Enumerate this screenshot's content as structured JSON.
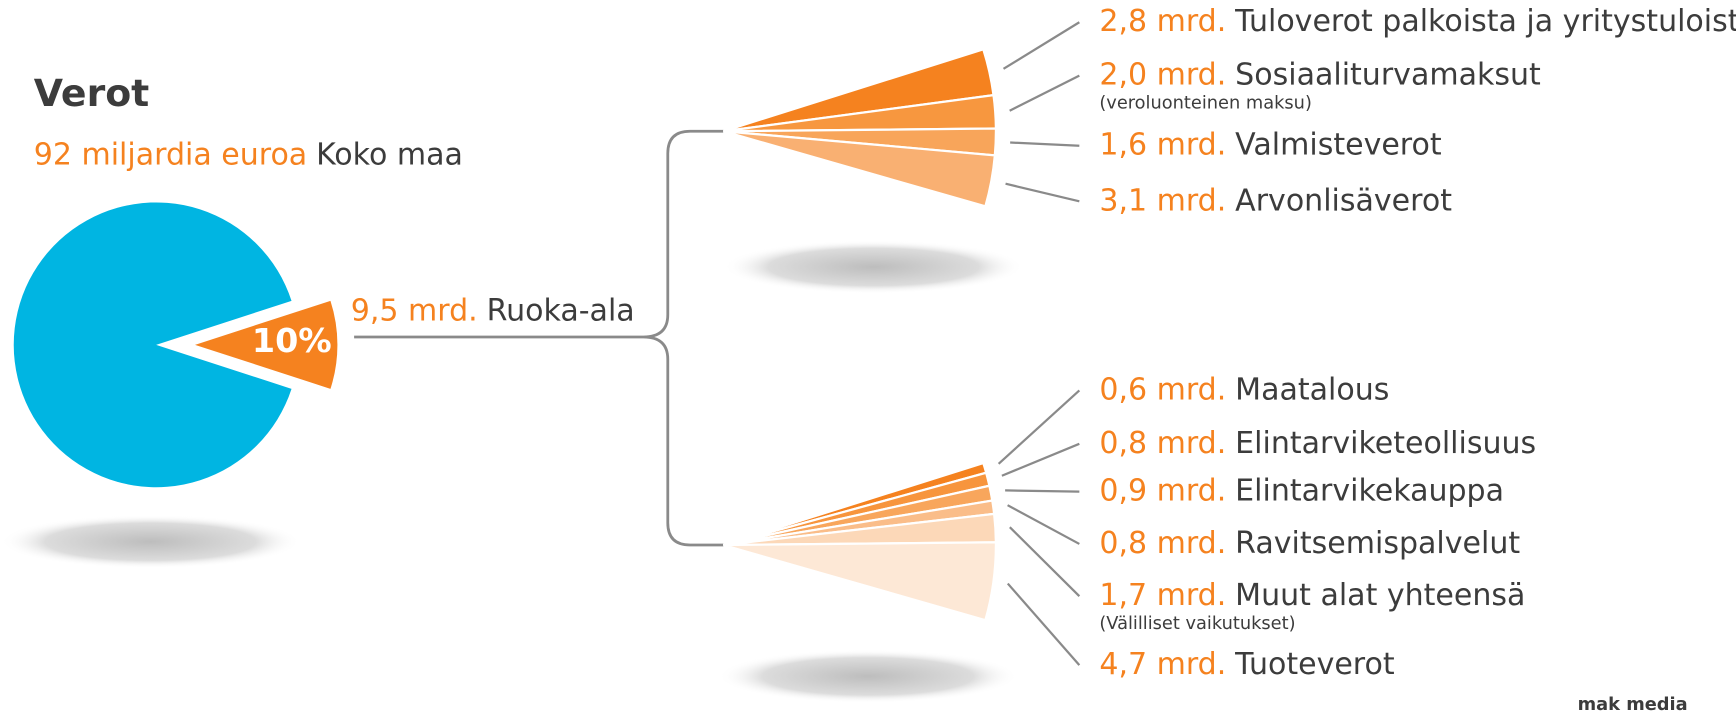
{
  "title": "Verot",
  "subtitle": {
    "amount": "92 miljardia euroa",
    "scope": "Koko maa"
  },
  "pie": {
    "value": 10,
    "value_label": "10%",
    "color": "#00b5e2",
    "slice_color": "#f5821f"
  },
  "root": {
    "value": 9.5,
    "value_label": "9,5 mrd.",
    "name": "Ruoka-ala"
  },
  "groups": [
    {
      "items": [
        {
          "value": 2.8,
          "value_label": "2,8 mrd.",
          "name": "Tuloverot palkoista ja yritystuloista",
          "color": "#f5821f"
        },
        {
          "value": 2.0,
          "value_label": "2,0 mrd.",
          "name": "Sosiaaliturvamaksut",
          "note": "(veroluonteinen maksu)",
          "color": "#f7973f"
        },
        {
          "value": 1.6,
          "value_label": "1,6 mrd.",
          "name": "Valmisteverot",
          "color": "#f8a55a"
        },
        {
          "value": 3.1,
          "value_label": "3,1 mrd.",
          "name": "Arvonlisäverot",
          "color": "#f9b072"
        }
      ]
    },
    {
      "items": [
        {
          "value": 0.6,
          "value_label": "0,6 mrd.",
          "name": "Maatalous",
          "color": "#f5821f"
        },
        {
          "value": 0.8,
          "value_label": "0,8 mrd.",
          "name": "Elintarviketeollisuus",
          "color": "#f7953d"
        },
        {
          "value": 0.9,
          "value_label": "0,9 mrd.",
          "name": "Elintarvikekauppa",
          "color": "#f8a65c"
        },
        {
          "value": 0.8,
          "value_label": "0,8 mrd.",
          "name": "Ravitsemispalvelut",
          "color": "#fabd89"
        },
        {
          "value": 1.7,
          "value_label": "1,7 mrd.",
          "name": "Muut alat yhteensä",
          "note": "(Välilliset vaikutukset)",
          "color": "#fcd8b8"
        },
        {
          "value": 4.7,
          "value_label": "4,7 mrd.",
          "name": "Tuoteverot",
          "color": "#fde8d6"
        }
      ]
    }
  ],
  "logo": "mak media"
}
